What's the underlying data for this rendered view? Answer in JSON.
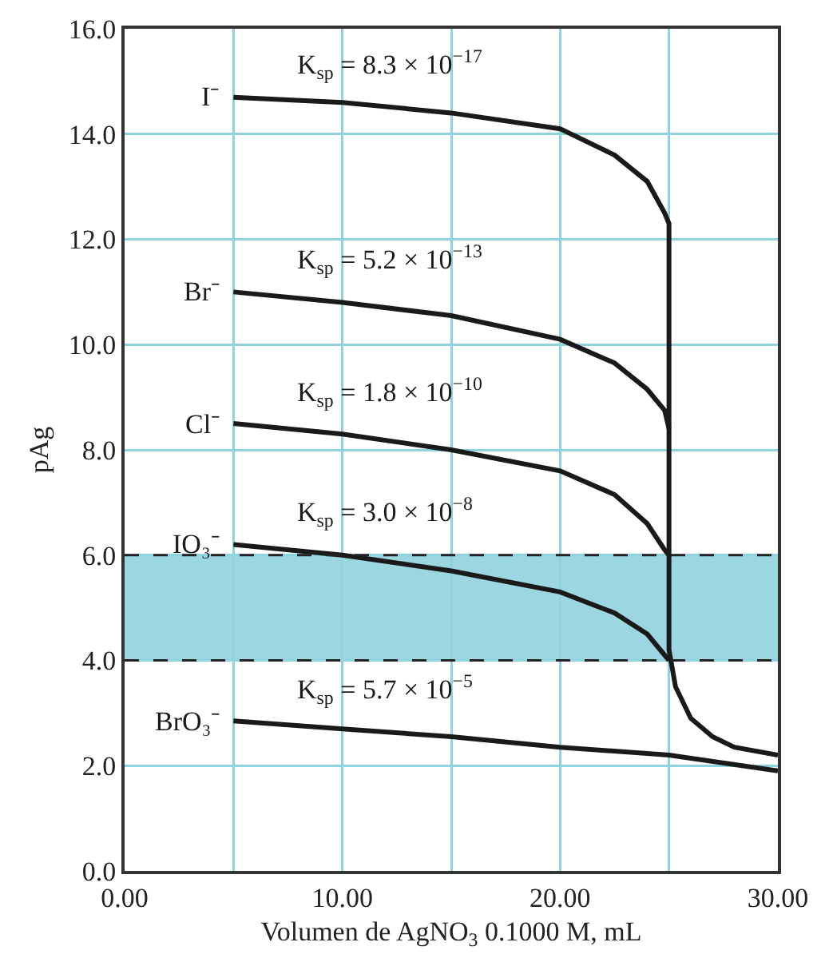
{
  "chart_data": {
    "type": "line",
    "xlabel": "Volumen de AgNO$_{3}$ 0.1000 M, mL",
    "ylabel": "pAg",
    "xlim": [
      0,
      30
    ],
    "ylim": [
      0,
      16
    ],
    "xticks": [
      {
        "value": 0,
        "label": "0.00"
      },
      {
        "value": 5,
        "label": null
      },
      {
        "value": 10,
        "label": "10.00"
      },
      {
        "value": 15,
        "label": null
      },
      {
        "value": 20,
        "label": "20.00"
      },
      {
        "value": 25,
        "label": null
      },
      {
        "value": 30,
        "label": "30.00"
      }
    ],
    "yticks": [
      {
        "value": 0,
        "label": "0.0"
      },
      {
        "value": 2,
        "label": "2.0"
      },
      {
        "value": 4,
        "label": "4.0"
      },
      {
        "value": 6,
        "label": "6.0"
      },
      {
        "value": 8,
        "label": "8.0"
      },
      {
        "value": 10,
        "label": "10.0"
      },
      {
        "value": 12,
        "label": "12.0"
      },
      {
        "value": 14,
        "label": "14.0"
      },
      {
        "value": 16,
        "label": "16.0"
      }
    ],
    "grid": true,
    "legend": false,
    "marker": "none",
    "line_style": "solid",
    "series": [
      {
        "name": "I⁻",
        "color": "#1a1a1a",
        "x": [
          5,
          10,
          15,
          20,
          22.5,
          24,
          24.8,
          25,
          25,
          25.3,
          26,
          27,
          28,
          30
        ],
        "values": [
          14.7,
          14.6,
          14.4,
          14.1,
          13.6,
          13.1,
          12.5,
          12.3,
          4.2,
          3.5,
          2.9,
          2.55,
          2.35,
          2.2
        ]
      },
      {
        "name": "Br⁻",
        "color": "#1a1a1a",
        "x": [
          5,
          10,
          15,
          20,
          22.5,
          24,
          24.8,
          25
        ],
        "values": [
          11.0,
          10.8,
          10.55,
          10.1,
          9.65,
          9.15,
          8.75,
          8.4
        ]
      },
      {
        "name": "Cl⁻",
        "color": "#1a1a1a",
        "x": [
          5,
          10,
          15,
          20,
          22.5,
          24,
          24.8,
          25
        ],
        "values": [
          8.5,
          8.3,
          8.0,
          7.6,
          7.15,
          6.6,
          6.1,
          6.0
        ]
      },
      {
        "name": "IO₃⁻",
        "color": "#1a1a1a",
        "x": [
          5,
          10,
          15,
          20,
          22.5,
          24,
          25
        ],
        "values": [
          6.2,
          6.0,
          5.7,
          5.3,
          4.9,
          4.5,
          4.0
        ]
      },
      {
        "name": "BrO₃⁻",
        "color": "#1a1a1a",
        "x": [
          5,
          10,
          15,
          20,
          25,
          30
        ],
        "values": [
          2.85,
          2.7,
          2.55,
          2.35,
          2.2,
          1.9
        ]
      }
    ],
    "bands": [
      {
        "axis": "y",
        "from": 4,
        "to": 6,
        "color": "#4ab4c8"
      }
    ],
    "annotations": [
      "K$_{sp}$ = 8.3 × 10$^{−17}$",
      "K$_{sp}$ = 5.2 × 10$^{−13}$",
      "K$_{sp}$ = 1.8 × 10$^{−10}$",
      "K$_{sp}$ = 3.0 × 10$^{−8}$",
      "K$_{sp}$ = 5.7 × 10$^{−5}$"
    ]
  }
}
